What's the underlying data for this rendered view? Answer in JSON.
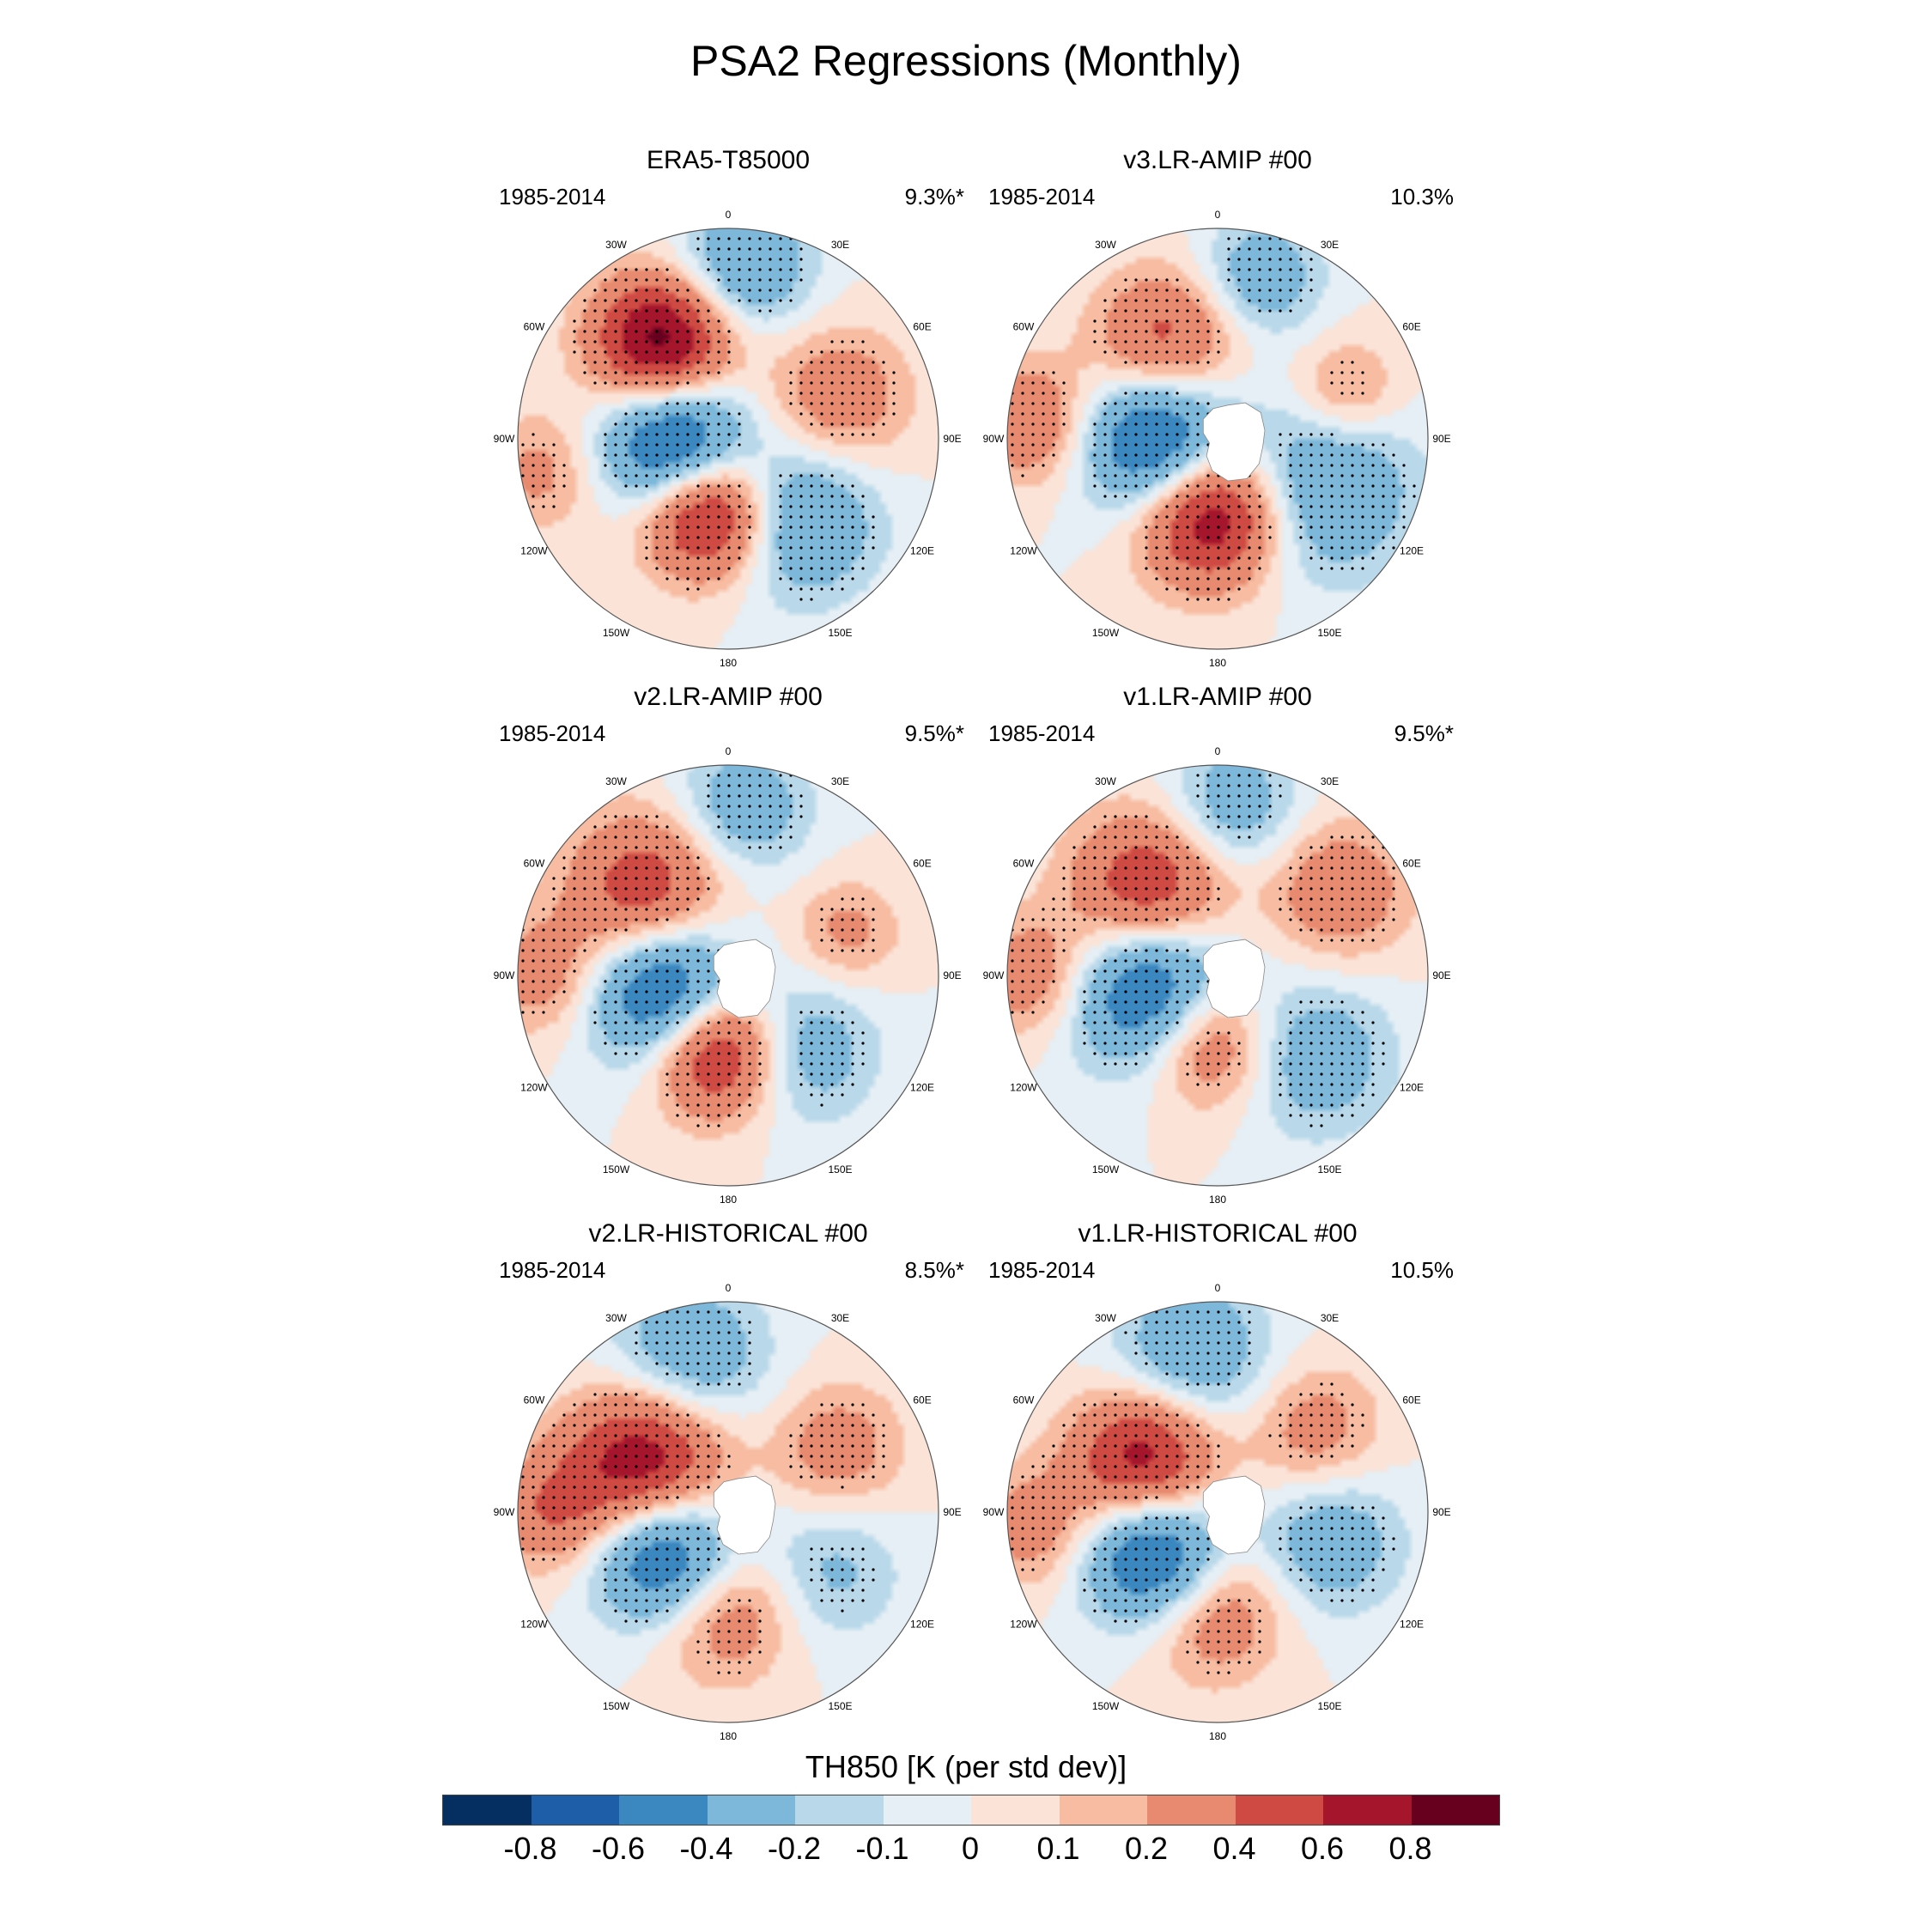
{
  "figure": {
    "title": "PSA2 Regressions (Monthly)"
  },
  "panels": [
    {
      "title": "ERA5-T85000",
      "period": "1985-2014",
      "pct": "9.3%*",
      "masked": false,
      "anomalies": [
        {
          "lon": -35,
          "r": 0.55,
          "v": 0.95,
          "s": 0.23
        },
        {
          "lon": -95,
          "r": 0.25,
          "v": -0.9,
          "s": 0.24
        },
        {
          "lon": -165,
          "r": 0.35,
          "v": 0.95,
          "s": 0.22
        },
        {
          "lon": 140,
          "r": 0.5,
          "v": -0.5,
          "s": 0.26
        },
        {
          "lon": 5,
          "r": 0.82,
          "v": -0.45,
          "s": 0.22
        },
        {
          "lon": 70,
          "r": 0.55,
          "v": 0.35,
          "s": 0.24
        },
        {
          "lon": -100,
          "r": 0.9,
          "v": 0.25,
          "s": 0.2
        }
      ]
    },
    {
      "title": "v3.LR-AMIP  #00",
      "period": "1985-2014",
      "pct": "10.3%",
      "masked": true,
      "anomalies": [
        {
          "lon": -30,
          "r": 0.5,
          "v": 0.55,
          "s": 0.24
        },
        {
          "lon": -90,
          "r": 0.28,
          "v": -0.85,
          "s": 0.25
        },
        {
          "lon": -175,
          "r": 0.35,
          "v": 0.9,
          "s": 0.24
        },
        {
          "lon": 115,
          "r": 0.55,
          "v": -0.45,
          "s": 0.3
        },
        {
          "lon": 15,
          "r": 0.8,
          "v": -0.35,
          "s": 0.2
        },
        {
          "lon": 70,
          "r": 0.65,
          "v": 0.3,
          "s": 0.18
        },
        {
          "lon": -85,
          "r": 0.88,
          "v": 0.4,
          "s": 0.2
        }
      ]
    },
    {
      "title": "v2.LR-AMIP  #00",
      "period": "1985-2014",
      "pct": "9.5%*",
      "masked": true,
      "anomalies": [
        {
          "lon": -45,
          "r": 0.55,
          "v": 0.6,
          "s": 0.26
        },
        {
          "lon": -105,
          "r": 0.3,
          "v": -0.85,
          "s": 0.25
        },
        {
          "lon": -170,
          "r": 0.35,
          "v": 0.85,
          "s": 0.22
        },
        {
          "lon": 135,
          "r": 0.5,
          "v": -0.35,
          "s": 0.24
        },
        {
          "lon": 5,
          "r": 0.8,
          "v": -0.35,
          "s": 0.22
        },
        {
          "lon": 70,
          "r": 0.6,
          "v": 0.25,
          "s": 0.18
        },
        {
          "lon": -90,
          "r": 0.88,
          "v": 0.3,
          "s": 0.2
        }
      ]
    },
    {
      "title": "v1.LR-AMIP  #00",
      "period": "1985-2014",
      "pct": "9.5%*",
      "masked": true,
      "anomalies": [
        {
          "lon": -40,
          "r": 0.5,
          "v": 0.7,
          "s": 0.26
        },
        {
          "lon": -100,
          "r": 0.3,
          "v": -0.85,
          "s": 0.27
        },
        {
          "lon": -170,
          "r": 0.3,
          "v": 0.6,
          "s": 0.22
        },
        {
          "lon": 130,
          "r": 0.6,
          "v": -0.35,
          "s": 0.26
        },
        {
          "lon": 5,
          "r": 0.8,
          "v": -0.35,
          "s": 0.22
        },
        {
          "lon": 55,
          "r": 0.7,
          "v": 0.35,
          "s": 0.24
        },
        {
          "lon": -90,
          "r": 0.88,
          "v": 0.35,
          "s": 0.2
        }
      ]
    },
    {
      "title": "v2.LR-HISTORICAL  #00",
      "period": "1985-2014",
      "pct": "8.5%*",
      "masked": true,
      "anomalies": [
        {
          "lon": -60,
          "r": 0.45,
          "v": 0.85,
          "s": 0.26
        },
        {
          "lon": -125,
          "r": 0.35,
          "v": -0.85,
          "s": 0.24
        },
        {
          "lon": -175,
          "r": 0.45,
          "v": 0.45,
          "s": 0.24
        },
        {
          "lon": 120,
          "r": 0.55,
          "v": -0.25,
          "s": 0.24
        },
        {
          "lon": -15,
          "r": 0.75,
          "v": -0.4,
          "s": 0.26
        },
        {
          "lon": 60,
          "r": 0.6,
          "v": 0.3,
          "s": 0.22
        },
        {
          "lon": -90,
          "r": 0.85,
          "v": 0.35,
          "s": 0.2
        }
      ]
    },
    {
      "title": "v1.LR-HISTORICAL  #00",
      "period": "1985-2014",
      "pct": "10.5%",
      "masked": true,
      "anomalies": [
        {
          "lon": -55,
          "r": 0.42,
          "v": 0.8,
          "s": 0.24
        },
        {
          "lon": -125,
          "r": 0.35,
          "v": -0.85,
          "s": 0.24
        },
        {
          "lon": -175,
          "r": 0.45,
          "v": 0.45,
          "s": 0.24
        },
        {
          "lon": 105,
          "r": 0.55,
          "v": -0.35,
          "s": 0.24
        },
        {
          "lon": -10,
          "r": 0.75,
          "v": -0.4,
          "s": 0.26
        },
        {
          "lon": 50,
          "r": 0.6,
          "v": 0.3,
          "s": 0.22
        },
        {
          "lon": -95,
          "r": 0.88,
          "v": 0.3,
          "s": 0.2
        }
      ]
    }
  ],
  "longitude_labels": [
    "0",
    "30E",
    "60E",
    "90E",
    "120E",
    "150E",
    "180",
    "150W",
    "120W",
    "90W",
    "60W",
    "30W"
  ],
  "colorbar": {
    "title": "TH850 [K (per std dev)]",
    "labels": [
      "-0.8",
      "-0.6",
      "-0.4",
      "-0.2",
      "-0.1",
      "0",
      "0.1",
      "0.2",
      "0.4",
      "0.6",
      "0.8"
    ],
    "colors": [
      "#052f61",
      "#1e5ea8",
      "#3b87c0",
      "#7db8da",
      "#b9d9ea",
      "#e5eff5",
      "#fbe3d7",
      "#f7bca1",
      "#e88a6f",
      "#cf4a43",
      "#a5152c",
      "#67001f"
    ],
    "levels": [
      -0.8,
      -0.6,
      -0.4,
      -0.2,
      -0.1,
      0,
      0.1,
      0.2,
      0.4,
      0.6,
      0.8
    ]
  }
}
